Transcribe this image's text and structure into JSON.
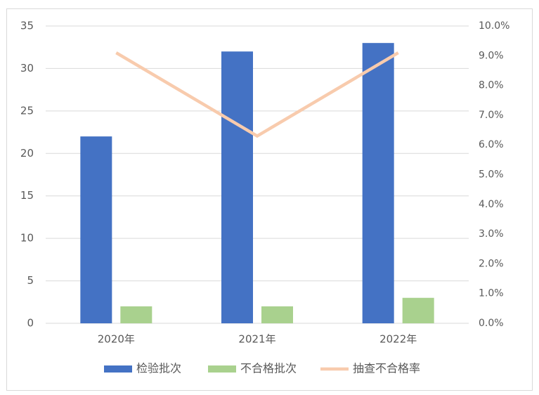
{
  "chart_data": {
    "type": "bar-line",
    "categories": [
      "2020年",
      "2021年",
      "2022年"
    ],
    "series": [
      {
        "name": "检验批次",
        "color": "#4472c4",
        "type": "bar",
        "values": [
          22,
          32,
          33
        ]
      },
      {
        "name": "不合格批次",
        "color": "#a9d18e",
        "type": "bar",
        "values": [
          2,
          2,
          3
        ]
      },
      {
        "name": "抽查不合格率",
        "color": "#f8cbad",
        "type": "line",
        "axis": "y2",
        "values": [
          9.1,
          6.3,
          9.1
        ]
      }
    ],
    "ylim": [
      0,
      35
    ],
    "yticks": [
      0,
      5,
      10,
      15,
      20,
      25,
      30,
      35
    ],
    "y2lim": [
      0,
      10
    ],
    "y2ticks": [
      {
        "value": 0,
        "label": "0.0%"
      },
      {
        "value": 1,
        "label": "1.0%"
      },
      {
        "value": 2,
        "label": "2.0%"
      },
      {
        "value": 3,
        "label": "3.0%"
      },
      {
        "value": 4,
        "label": "4.0%"
      },
      {
        "value": 5,
        "label": "5.0%"
      },
      {
        "value": 6,
        "label": "6.0%"
      },
      {
        "value": 7,
        "label": "7.0%"
      },
      {
        "value": 8,
        "label": "8.0%"
      },
      {
        "value": 9,
        "label": "9.0%"
      },
      {
        "value": 10,
        "label": "10.0%"
      }
    ],
    "grid": true,
    "legend": "bottom"
  }
}
